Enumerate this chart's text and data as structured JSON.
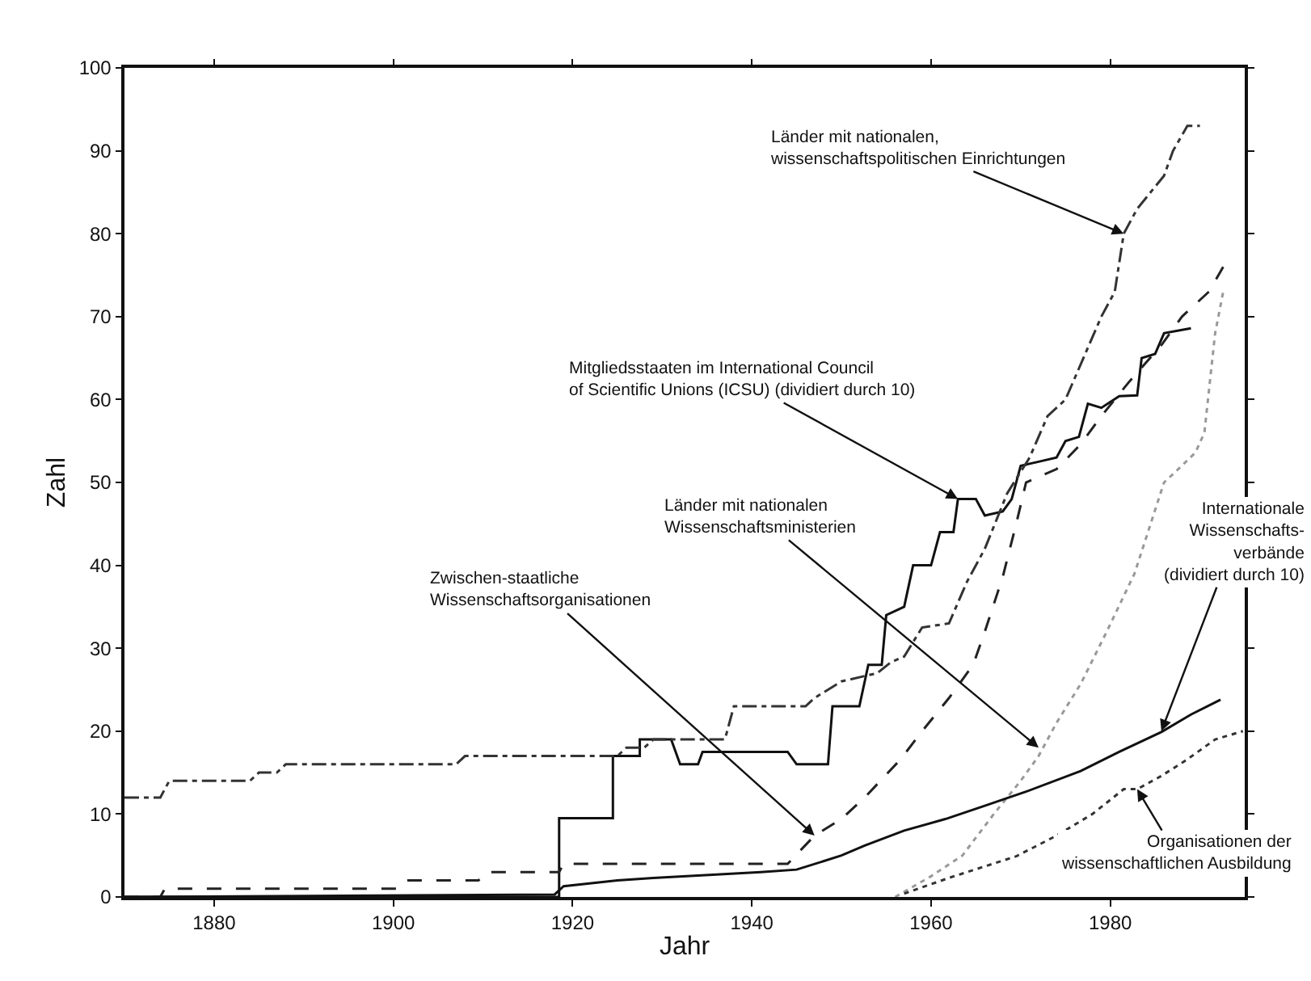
{
  "chart_data": {
    "type": "line",
    "xlabel": "Jahr",
    "ylabel": "Zahl",
    "xlim": [
      1870,
      1995
    ],
    "xticks": [
      1880,
      1900,
      1920,
      1940,
      1960,
      1980
    ],
    "ylim": [
      0,
      100
    ],
    "yticks": [
      0,
      10,
      20,
      30,
      40,
      50,
      60,
      70,
      80,
      90,
      100
    ],
    "marker": "none",
    "series": [
      {
        "color": "#111111",
        "line_style": "solid",
        "x": [
          1870,
          1918.5,
          1918.5,
          1924.5,
          1924.5,
          1927.5,
          1927.5,
          1931,
          1932,
          1934,
          1934.5,
          1944,
          1945,
          1948.5,
          1949,
          1952,
          1953,
          1954.5,
          1955,
          1957,
          1958,
          1960,
          1961,
          1962.5,
          1963,
          1965,
          1966,
          1968,
          1969,
          1970,
          1972,
          1974,
          1975,
          1976.5,
          1977.5,
          1979,
          1981,
          1983,
          1983.5,
          1985,
          1986,
          1989
        ],
        "values": [
          0,
          0,
          9.5,
          9.5,
          17,
          17,
          19,
          19,
          16,
          16,
          17.5,
          17.5,
          16,
          16,
          23,
          23,
          28,
          28,
          34,
          35,
          40,
          40,
          44,
          44,
          48,
          48,
          46,
          46.5,
          48,
          52,
          52.5,
          53,
          55,
          55.5,
          59.5,
          59,
          60.4,
          60.5,
          65,
          65.5,
          68,
          68.6
        ]
      },
      {
        "color": "#333333",
        "line_style": "dashdot",
        "x": [
          1870,
          1874,
          1875,
          1884,
          1885,
          1887,
          1888,
          1907,
          1908,
          1925,
          1926,
          1928,
          1929,
          1937,
          1938,
          1946,
          1947,
          1950,
          1954,
          1955.5,
          1957,
          1959,
          1962,
          1964,
          1966,
          1968.5,
          1971,
          1973,
          1975,
          1977,
          1979,
          1980.5,
          1981.5,
          1983,
          1986,
          1987,
          1988.6,
          1990
        ],
        "values": [
          12,
          12,
          14,
          14,
          15,
          15,
          16,
          16,
          17,
          17,
          18,
          18,
          19,
          19,
          23,
          23,
          24,
          26,
          27,
          28.3,
          29,
          32.5,
          33,
          38,
          42,
          48.7,
          53,
          58,
          60,
          65,
          70,
          73,
          80,
          83,
          87,
          90,
          93,
          93
        ]
      },
      {
        "color": "#222222",
        "line_style": "dashed",
        "x": [
          1870,
          1874,
          1874.5,
          1900.5,
          1901.5,
          1909.5,
          1910.5,
          1918.5,
          1919,
          1944,
          1947,
          1950,
          1952.6,
          1956.6,
          1959,
          1962,
          1964.7,
          1966,
          1968,
          1969.5,
          1970.6,
          1974,
          1976.7,
          1979,
          1982,
          1985.8,
          1988,
          1991,
          1992.6
        ],
        "values": [
          0,
          0,
          1,
          1,
          2,
          2,
          3,
          3,
          4,
          4,
          7.4,
          9.4,
          12,
          16.6,
          20,
          24,
          28,
          32,
          38.6,
          45,
          50,
          51.6,
          54.6,
          58,
          62,
          66.7,
          70,
          73,
          76
        ]
      },
      {
        "color": "#999999",
        "line_style": "dotted",
        "x": [
          1956,
          1960,
          1963.5,
          1967,
          1970,
          1972,
          1974,
          1976.7,
          1979.6,
          1982.7,
          1984.5,
          1986,
          1987,
          1989.5,
          1990.5,
          1991.7,
          1992.6
        ],
        "values": [
          0,
          2.5,
          5,
          10,
          14,
          17,
          21,
          25.7,
          32,
          39,
          45,
          50,
          51,
          53.6,
          56,
          68,
          73
        ]
      },
      {
        "color": "#111111",
        "line_style": "solid",
        "x": [
          1870,
          1918,
          1919,
          1925,
          1929,
          1941,
          1945,
          1950,
          1952.6,
          1957,
          1961.6,
          1966,
          1970.6,
          1976.7,
          1981,
          1985.7,
          1989,
          1992.3
        ],
        "values": [
          0,
          0.3,
          1.3,
          2,
          2.3,
          3,
          3.3,
          5,
          6.2,
          8,
          9.4,
          11,
          12.7,
          15.2,
          17.5,
          19.9,
          22,
          23.8
        ]
      },
      {
        "color": "#333333",
        "line_style": "dotted",
        "x": [
          1957,
          1962,
          1969.5,
          1974,
          1978,
          1981.5,
          1983,
          1985.7,
          1988.6,
          1991.7,
          1994.8
        ],
        "values": [
          0.4,
          2.3,
          4.9,
          7.4,
          10,
          13,
          13,
          14.6,
          16.6,
          19,
          20
        ]
      }
    ],
    "annotations": [
      {
        "text": "Länder mit nationalen,\nwissenschaftspolitischen Einrichtungen",
        "x": 1981.5,
        "y": 80
      },
      {
        "text": "Mitgliedsstaaten im International Council\nof Scientific Unions (ICSU) (dividiert durch 10)",
        "x": 1963,
        "y": 48
      },
      {
        "text": "Länder mit nationalen\nWissenschaftsministerien",
        "x": 1972,
        "y": 18
      },
      {
        "text": "Zwischen-staatliche\nWissenschaftsorganisationen",
        "x": 1947,
        "y": 7.4
      },
      {
        "text": "Internationale\nWissenschafts-\nverbände\n(dividiert durch 10)",
        "x": 1985.7,
        "y": 20
      },
      {
        "text": "Organisationen der\nwissenschaftlichen Ausbildung",
        "x": 1983,
        "y": 13
      }
    ]
  }
}
